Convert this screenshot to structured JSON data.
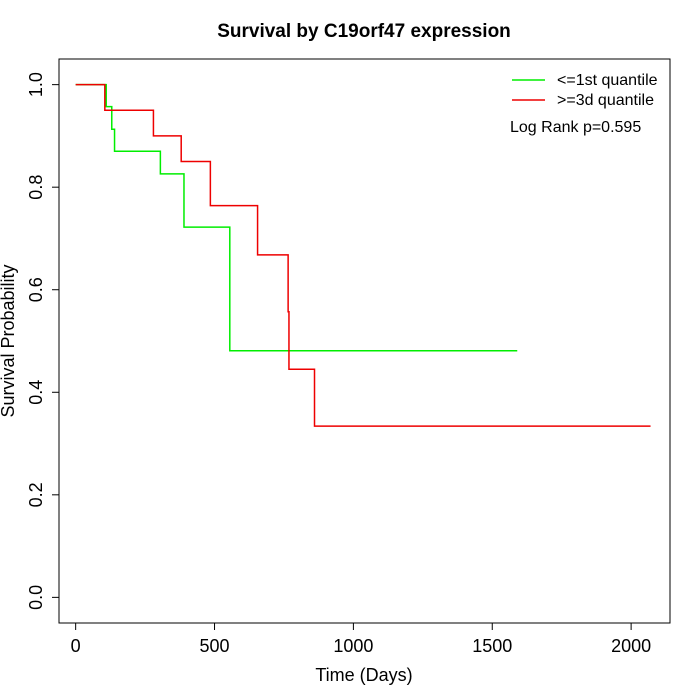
{
  "chart_data": {
    "type": "line",
    "title": "Survival by C19orf47 expression",
    "xlabel": "Time (Days)",
    "ylabel": "Survival Probability",
    "xlim": [
      -60,
      2140
    ],
    "ylim": [
      -0.05,
      1.05
    ],
    "x_ticks": [
      0,
      500,
      1000,
      1500,
      2000
    ],
    "x_tick_labels": [
      "0",
      "500",
      "1000",
      "1500",
      "2000"
    ],
    "y_ticks": [
      0.0,
      0.2,
      0.4,
      0.6,
      0.8,
      1.0
    ],
    "y_tick_labels": [
      "0.0",
      "0.2",
      "0.4",
      "0.6",
      "0.8",
      "1.0"
    ],
    "grid": false,
    "legend_position": "top-right",
    "series": [
      {
        "name": "<=1st quantile",
        "color": "#00ee00",
        "steps": [
          {
            "x": 0,
            "y": 1.0
          },
          {
            "x": 110,
            "y": 0.957
          },
          {
            "x": 130,
            "y": 0.913
          },
          {
            "x": 140,
            "y": 0.87
          },
          {
            "x": 305,
            "y": 0.826
          },
          {
            "x": 390,
            "y": 0.722
          },
          {
            "x": 555,
            "y": 0.481
          },
          {
            "x": 1590,
            "y": 0.481
          }
        ]
      },
      {
        "name": ">=3d quantile",
        "color": "#ee0000",
        "steps": [
          {
            "x": 0,
            "y": 1.0
          },
          {
            "x": 105,
            "y": 0.95
          },
          {
            "x": 280,
            "y": 0.9
          },
          {
            "x": 380,
            "y": 0.85
          },
          {
            "x": 485,
            "y": 0.764
          },
          {
            "x": 655,
            "y": 0.668
          },
          {
            "x": 765,
            "y": 0.557
          },
          {
            "x": 768,
            "y": 0.445
          },
          {
            "x": 860,
            "y": 0.334
          },
          {
            "x": 2070,
            "y": 0.334
          }
        ]
      }
    ],
    "annotation": "Log Rank p=0.595"
  }
}
